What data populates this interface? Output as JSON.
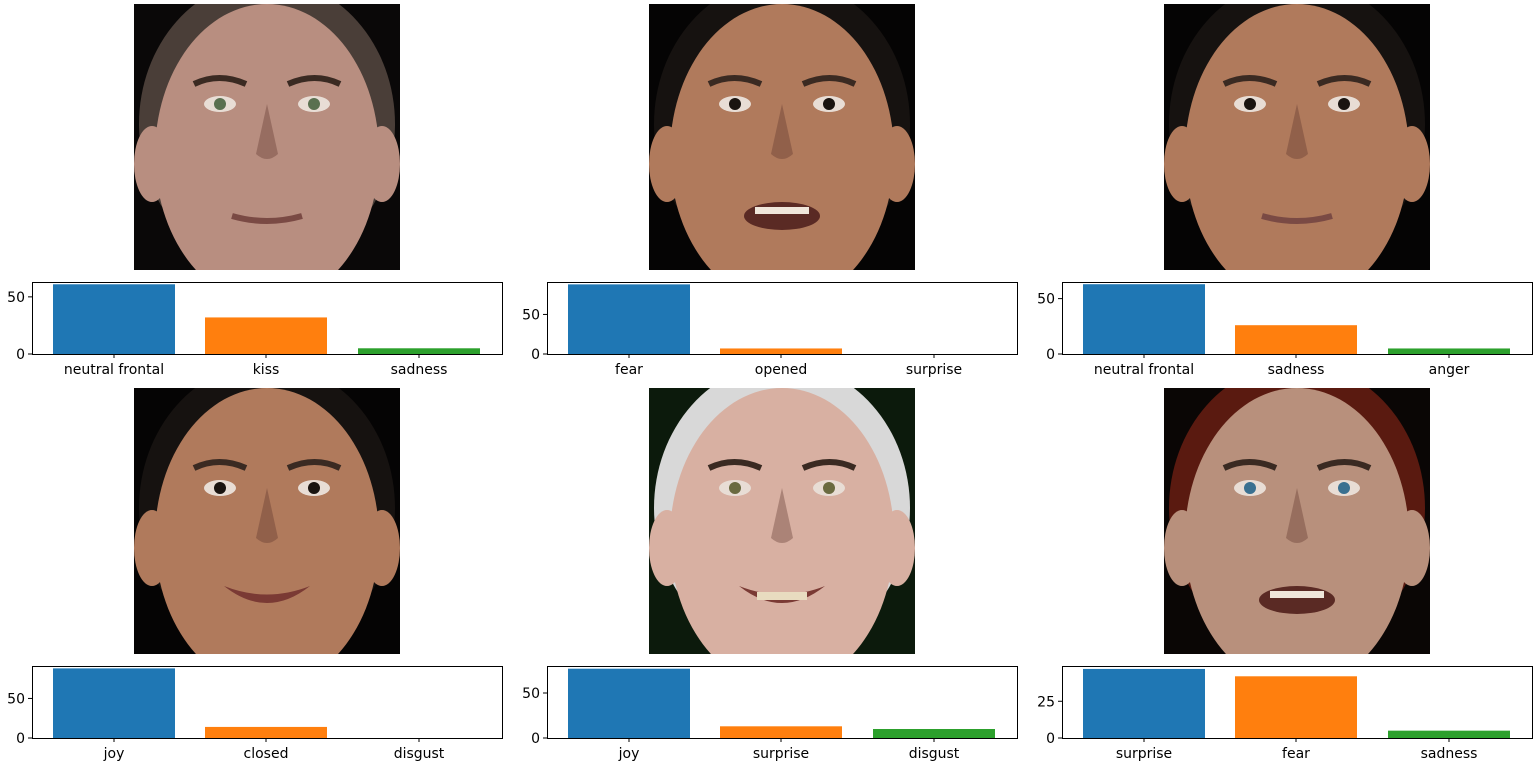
{
  "colors": {
    "series": [
      "#1f77b4",
      "#ff7f0e",
      "#2ca02c"
    ]
  },
  "chart_data": [
    {
      "type": "bar",
      "categories": [
        "neutral frontal",
        "kiss",
        "sadness"
      ],
      "values": [
        61,
        32,
        5
      ],
      "ylim": [
        0,
        63
      ],
      "yticks": [
        0,
        50
      ],
      "face": {
        "skin": "#b88e80",
        "hair": "#4a3e38",
        "bg": "#0a0808",
        "eyes": "#5a7050",
        "mouth": "neutral"
      }
    },
    {
      "type": "bar",
      "categories": [
        "fear",
        "opened",
        "surprise"
      ],
      "values": [
        88,
        7,
        0
      ],
      "ylim": [
        0,
        91
      ],
      "yticks": [
        0,
        50
      ],
      "face": {
        "skin": "#b07a5c",
        "hair": "#161210",
        "bg": "#050404",
        "eyes": "#1a1410",
        "mouth": "open"
      }
    },
    {
      "type": "bar",
      "categories": [
        "neutral frontal",
        "sadness",
        "anger"
      ],
      "values": [
        63,
        26,
        5
      ],
      "ylim": [
        0,
        65
      ],
      "yticks": [
        0,
        50
      ],
      "face": {
        "skin": "#b07a5c",
        "hair": "#161210",
        "bg": "#050404",
        "eyes": "#1a1410",
        "mouth": "neutral"
      }
    },
    {
      "type": "bar",
      "categories": [
        "joy",
        "closed",
        "disgust"
      ],
      "values": [
        88,
        14,
        0
      ],
      "ylim": [
        0,
        91
      ],
      "yticks": [
        0,
        50
      ],
      "face": {
        "skin": "#b07a5c",
        "hair": "#161210",
        "bg": "#050404",
        "eyes": "#1a1410",
        "mouth": "smile"
      }
    },
    {
      "type": "bar",
      "categories": [
        "joy",
        "surprise",
        "disgust"
      ],
      "values": [
        77,
        13,
        10
      ],
      "ylim": [
        0,
        80
      ],
      "yticks": [
        0,
        50
      ],
      "face": {
        "skin": "#d8b0a2",
        "hair": "#d8d8d8",
        "bg": "#0c1a0c",
        "eyes": "#6a6a40",
        "mouth": "grin"
      }
    },
    {
      "type": "bar",
      "categories": [
        "surprise",
        "fear",
        "sadness"
      ],
      "values": [
        47,
        42,
        5
      ],
      "ylim": [
        0,
        49
      ],
      "yticks": [
        0,
        25
      ],
      "face": {
        "skin": "#b8907c",
        "hair": "#5a1a10",
        "bg": "#0a0605",
        "eyes": "#3a7090",
        "mouth": "open"
      }
    }
  ]
}
